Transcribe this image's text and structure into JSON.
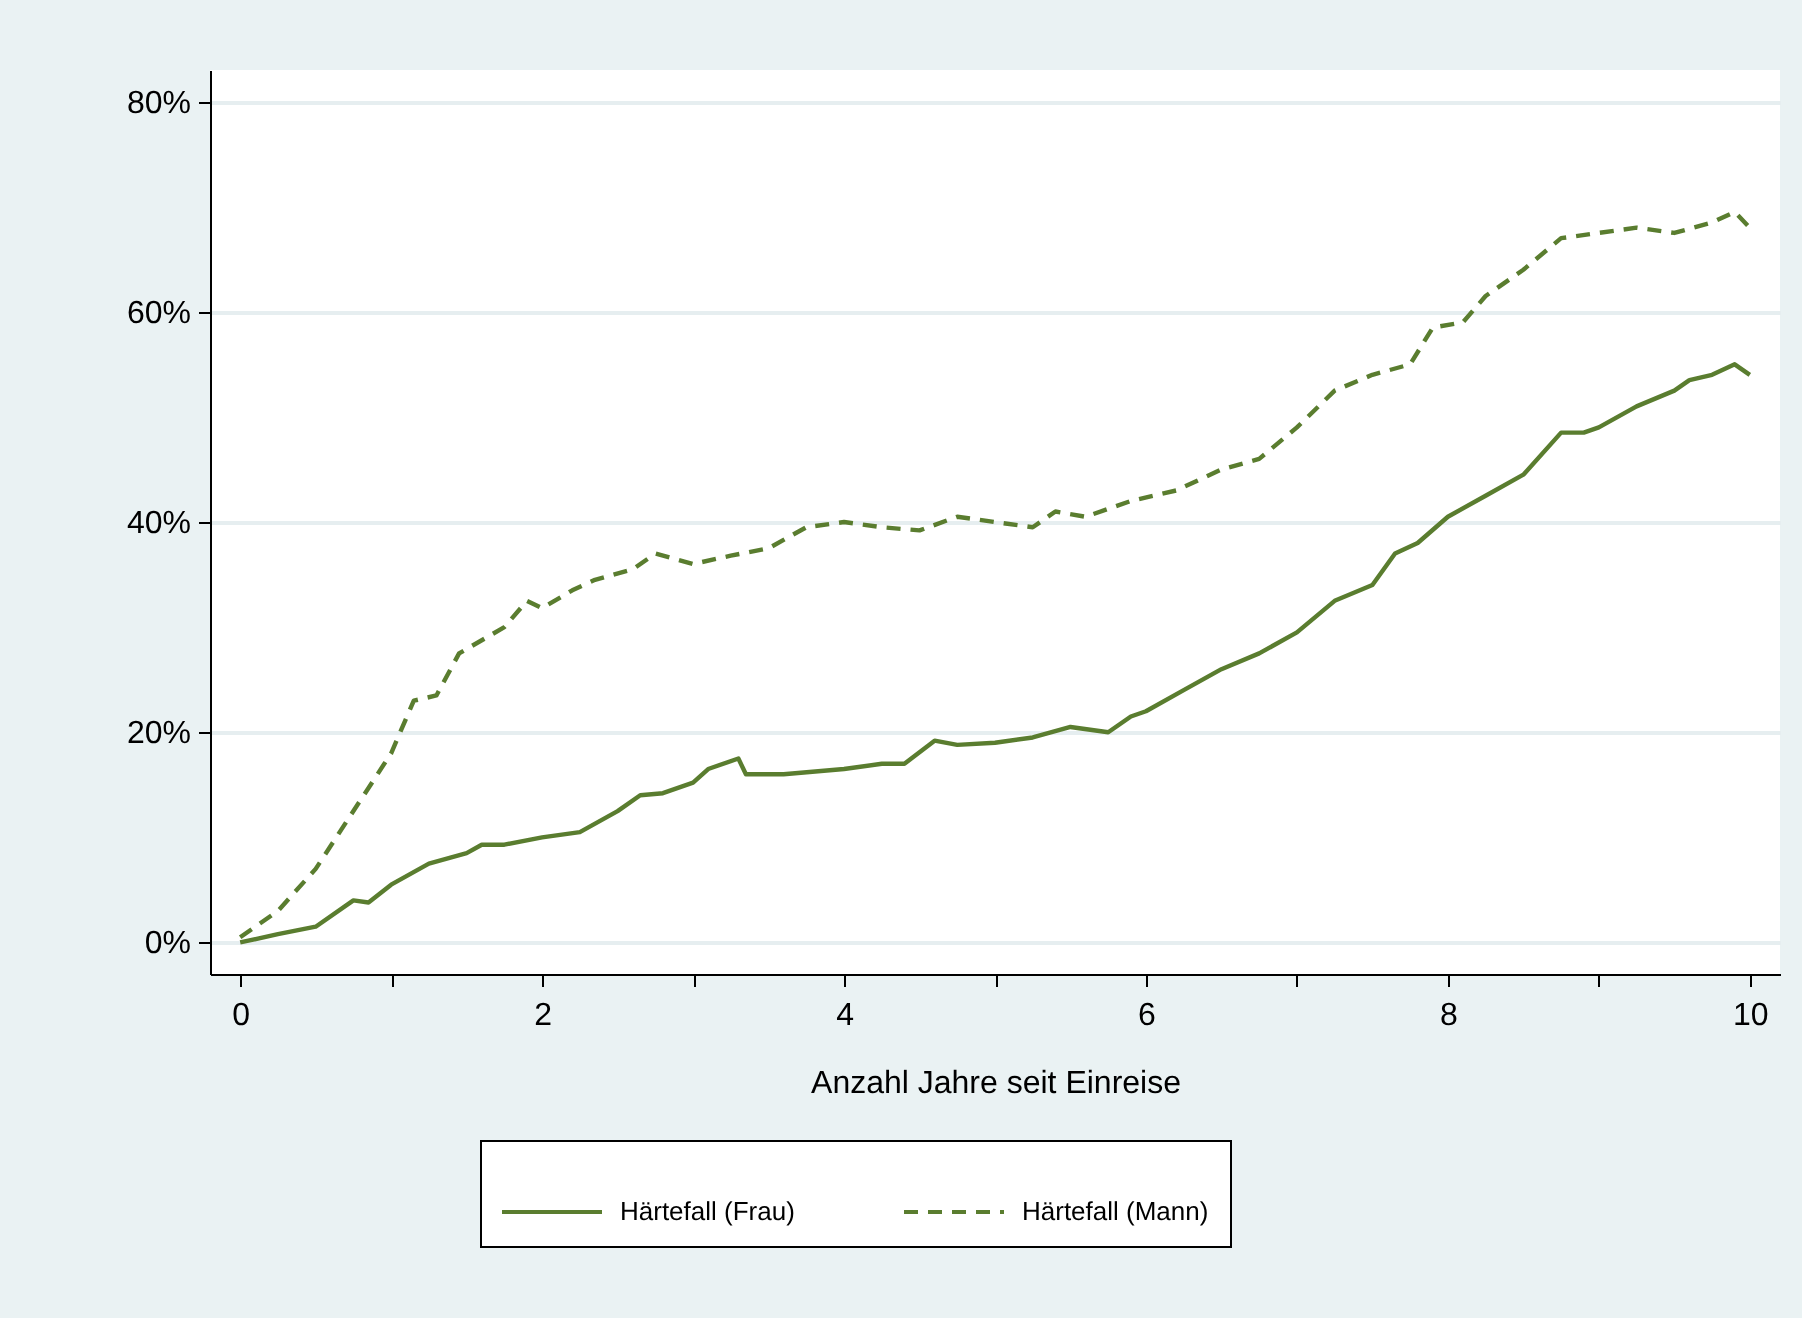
{
  "chart_data": {
    "type": "line",
    "xlabel": "Anzahl Jahre seit Einreise",
    "xlim": [
      -0.2,
      10.2
    ],
    "xticks": [
      0,
      {
        "value": 1,
        "label": null
      },
      2,
      {
        "value": 3,
        "label": null
      },
      4,
      {
        "value": 5,
        "label": null
      },
      6,
      {
        "value": 7,
        "label": null
      },
      8,
      {
        "value": 9,
        "label": null
      },
      10
    ],
    "ylim": [
      -3,
      83
    ],
    "yticks": [
      {
        "value": 0,
        "label": "0%"
      },
      {
        "value": 20,
        "label": "20%"
      },
      {
        "value": 40,
        "label": "40%"
      },
      {
        "value": 60,
        "label": "60%"
      },
      {
        "value": 80,
        "label": "80%"
      }
    ],
    "grid": "y",
    "legend": "bottom",
    "marker": "none",
    "series": [
      {
        "name": "Härtefall (Frau)",
        "color": "#5a7d2f",
        "line_style": "solid",
        "x": [
          0,
          0.25,
          0.5,
          0.75,
          0.85,
          1.0,
          1.25,
          1.5,
          1.6,
          1.75,
          2.0,
          2.25,
          2.5,
          2.65,
          2.8,
          3.0,
          3.1,
          3.3,
          3.35,
          3.6,
          4.0,
          4.25,
          4.4,
          4.6,
          4.75,
          5.0,
          5.25,
          5.5,
          5.75,
          5.9,
          6.0,
          6.25,
          6.5,
          6.75,
          7.0,
          7.25,
          7.5,
          7.65,
          7.8,
          8.0,
          8.25,
          8.5,
          8.75,
          8.9,
          9.0,
          9.25,
          9.5,
          9.6,
          9.75,
          9.9,
          10
        ],
        "values": [
          0,
          0.8,
          1.5,
          4,
          3.8,
          5.5,
          7.5,
          8.5,
          9.3,
          9.3,
          10,
          10.5,
          12.5,
          14,
          14.2,
          15.2,
          16.5,
          17.5,
          16,
          16,
          16.5,
          17,
          17,
          19.2,
          18.8,
          19,
          19.5,
          20.5,
          20,
          21.5,
          22,
          24,
          26,
          27.5,
          29.5,
          32.5,
          34,
          37,
          38,
          40.5,
          42.5,
          44.5,
          48.5,
          48.5,
          49,
          51,
          52.5,
          53.5,
          54,
          55,
          54
        ]
      },
      {
        "name": "Härtefall (Mann)",
        "color": "#5a7d2f",
        "line_style": "dashed",
        "x": [
          0,
          0.25,
          0.5,
          0.75,
          1.0,
          1.15,
          1.3,
          1.45,
          1.75,
          1.9,
          2.0,
          2.2,
          2.35,
          2.6,
          2.75,
          3.0,
          3.25,
          3.5,
          3.75,
          4.0,
          4.25,
          4.5,
          4.75,
          5.0,
          5.25,
          5.4,
          5.6,
          5.9,
          6.2,
          6.5,
          6.75,
          7.0,
          7.25,
          7.5,
          7.75,
          7.9,
          8.1,
          8.25,
          8.5,
          8.75,
          9.0,
          9.25,
          9.5,
          9.75,
          9.9,
          10
        ],
        "values": [
          0.5,
          3,
          7,
          12.5,
          18,
          23,
          23.5,
          27.5,
          30,
          32.5,
          31.8,
          33.5,
          34.5,
          35.5,
          37,
          36,
          36.8,
          37.5,
          39.5,
          40,
          39.5,
          39.2,
          40.5,
          40,
          39.5,
          41,
          40.5,
          42,
          43,
          45,
          46,
          49,
          52.5,
          54,
          55,
          58.5,
          59,
          61.5,
          64,
          67,
          67.5,
          68,
          67.5,
          68.5,
          69.5,
          68
        ]
      }
    ]
  }
}
